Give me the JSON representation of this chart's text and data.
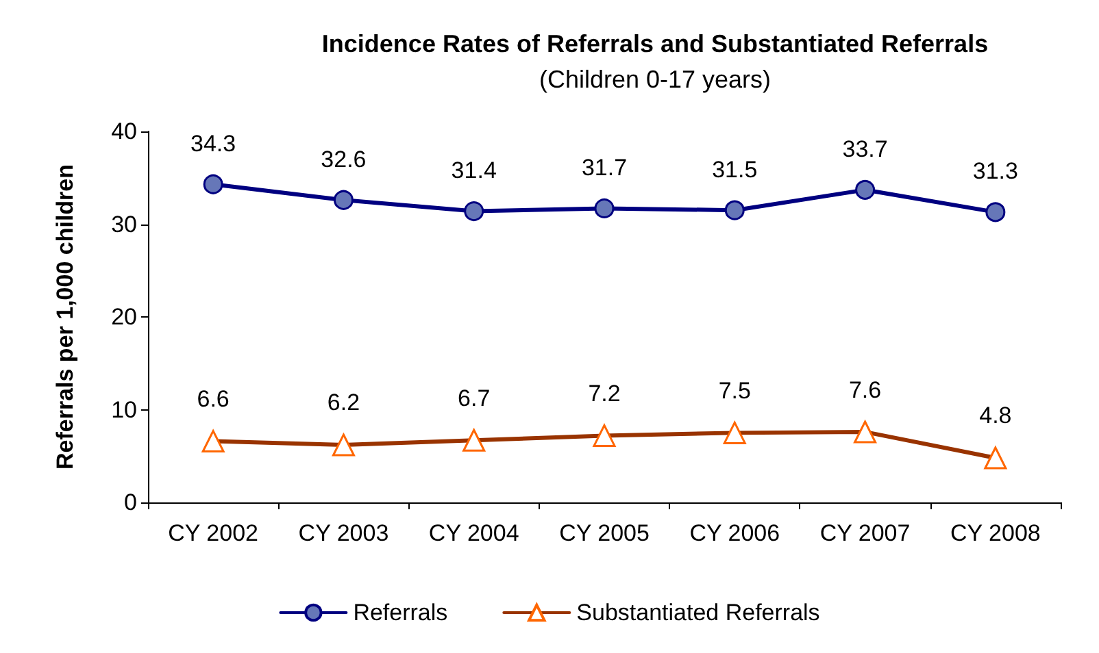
{
  "chart_data": {
    "type": "line",
    "title": "Incidence Rates of Referrals and Substantiated Referrals",
    "subtitle": "(Children 0-17 years)",
    "ylabel": "Referrals per 1,000 children",
    "categories": [
      "CY 2002",
      "CY 2003",
      "CY 2004",
      "CY 2005",
      "CY 2006",
      "CY 2007",
      "CY 2008"
    ],
    "series": [
      {
        "name": "Referrals",
        "color": "#000080",
        "marker": "circle",
        "values": [
          34.3,
          32.6,
          31.4,
          31.7,
          31.5,
          33.7,
          31.3
        ]
      },
      {
        "name": "Substantiated Referrals",
        "color": "#993300",
        "marker": "triangle",
        "values": [
          6.6,
          6.2,
          6.7,
          7.2,
          7.5,
          7.6,
          4.8
        ]
      }
    ],
    "ylim": [
      0,
      40
    ],
    "yticks": [
      0,
      10,
      20,
      30,
      40
    ],
    "grid": false,
    "legend": "bottom",
    "data_labels": true,
    "line_style": "solid"
  }
}
